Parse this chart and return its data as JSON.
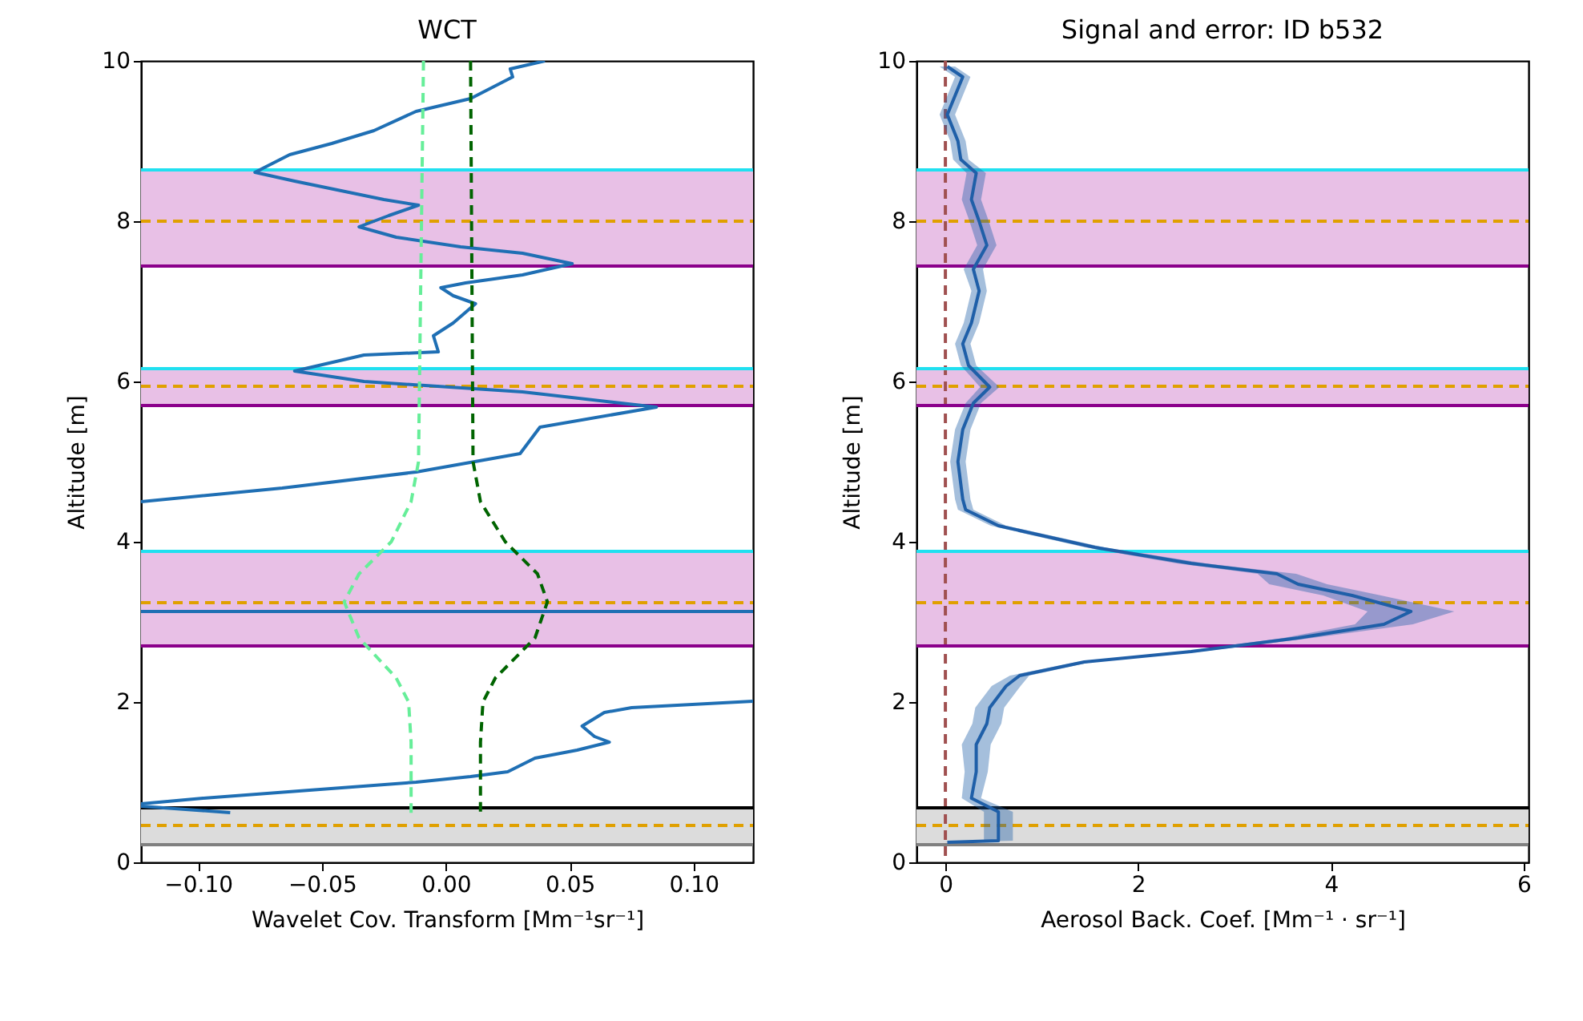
{
  "chart_data": [
    {
      "type": "line",
      "title": "WCT",
      "xlabel": "Wavelet Cov. Transform [Mm⁻¹sr⁻¹]",
      "ylabel": "Altitude [m]",
      "xlim": [
        -0.123,
        0.124
      ],
      "xticks": [
        {
          "value": -0.1,
          "label": "−0.10"
        },
        {
          "value": -0.05,
          "label": "−0.05"
        },
        {
          "value": 0,
          "label": "0.00"
        },
        {
          "value": 0.05,
          "label": "0.05"
        },
        {
          "value": 0.1,
          "label": "0.10"
        }
      ],
      "ylim": [
        0,
        10
      ],
      "yticks": [
        0,
        2,
        4,
        6,
        8,
        10
      ],
      "grid": false,
      "legend": false,
      "marker": "none",
      "series": [
        {
          "color": "#1f6fb4",
          "line_style": "solid",
          "x": [
            0.04,
            0.026,
            0.027,
            0.01,
            -0.012,
            -0.029,
            -0.046,
            -0.063,
            -0.077,
            -0.061,
            -0.025,
            -0.011,
            -0.023,
            -0.035,
            -0.02,
            0.006,
            0.031,
            0.051,
            0.031,
            0.008,
            -0.002,
            0.003,
            0.012,
            0.003,
            -0.005,
            -0.003,
            -0.033,
            -0.061,
            -0.033,
            0.031,
            0.085,
            0.038,
            0.03,
            -0.012,
            -0.066,
            -0.123,
            null,
            -0.123,
            0.124,
            null,
            0.124,
            0.075,
            0.064,
            0.055,
            0.06,
            0.066,
            0.053,
            0.036,
            0.025,
            0.01,
            -0.012,
            -0.055,
            -0.098,
            -0.123,
            null,
            -0.123,
            -0.087
          ],
          "values": [
            10.0,
            9.9,
            9.8,
            9.53,
            9.37,
            9.13,
            8.97,
            8.83,
            8.61,
            8.5,
            8.27,
            8.2,
            8.07,
            7.93,
            7.8,
            7.68,
            7.6,
            7.47,
            7.33,
            7.23,
            7.17,
            7.07,
            6.97,
            6.73,
            6.57,
            6.37,
            6.33,
            6.13,
            6.0,
            5.87,
            5.68,
            5.43,
            5.1,
            4.87,
            4.67,
            4.5,
            null,
            3.13,
            3.13,
            null,
            2.01,
            1.93,
            1.87,
            1.7,
            1.57,
            1.5,
            1.4,
            1.3,
            1.13,
            1.07,
            1.0,
            0.9,
            0.8,
            0.73,
            null,
            0.7,
            0.62
          ]
        },
        {
          "color": "#66ee99",
          "line_style": "dashed",
          "x": [
            -0.009,
            -0.011,
            -0.014,
            -0.022,
            -0.035,
            -0.041,
            -0.035,
            -0.02,
            -0.015,
            -0.014,
            -0.014
          ],
          "values": [
            10,
            5.0,
            4.5,
            4.0,
            3.6,
            3.25,
            2.8,
            2.3,
            2.0,
            1.5,
            0.6
          ]
        },
        {
          "color": "#006400",
          "line_style": "dashed",
          "x": [
            0.01,
            0.011,
            0.014,
            0.024,
            0.037,
            0.041,
            0.036,
            0.02,
            0.015,
            0.014,
            0.014
          ],
          "values": [
            10,
            5.0,
            4.5,
            4.0,
            3.6,
            3.25,
            2.8,
            2.3,
            2.0,
            1.5,
            0.6
          ]
        }
      ],
      "bands": [
        {
          "axis": "y",
          "from": 7.44,
          "to": 8.64,
          "color": "#e8c0e6"
        },
        {
          "axis": "y",
          "from": 5.7,
          "to": 6.16,
          "color": "#e8c0e6"
        },
        {
          "axis": "y",
          "from": 2.7,
          "to": 3.88,
          "color": "#e8c0e6"
        },
        {
          "axis": "y",
          "from": 0.22,
          "to": 0.68,
          "color": "#dcdcdc"
        }
      ],
      "ref_lines": [
        {
          "axis": "y",
          "value": 8.64,
          "color": "#20e0f0",
          "line_style": "solid"
        },
        {
          "axis": "y",
          "value": 8.0,
          "color": "#e0a000",
          "line_style": "dashed"
        },
        {
          "axis": "y",
          "value": 7.44,
          "color": "#8b008b",
          "line_style": "solid"
        },
        {
          "axis": "y",
          "value": 6.16,
          "color": "#20e0f0",
          "line_style": "solid"
        },
        {
          "axis": "y",
          "value": 5.94,
          "color": "#e0a000",
          "line_style": "dashed"
        },
        {
          "axis": "y",
          "value": 5.7,
          "color": "#8b008b",
          "line_style": "solid"
        },
        {
          "axis": "y",
          "value": 3.88,
          "color": "#20e0f0",
          "line_style": "solid"
        },
        {
          "axis": "y",
          "value": 3.24,
          "color": "#e0a000",
          "line_style": "dashed"
        },
        {
          "axis": "y",
          "value": 2.7,
          "color": "#8b008b",
          "line_style": "solid"
        },
        {
          "axis": "y",
          "value": 0.68,
          "color": "#000000",
          "line_style": "solid"
        },
        {
          "axis": "y",
          "value": 0.46,
          "color": "#e0a000",
          "line_style": "dashed"
        },
        {
          "axis": "y",
          "value": 0.22,
          "color": "#808080",
          "line_style": "solid"
        }
      ]
    },
    {
      "type": "line",
      "title": "Signal and error: ID b532",
      "xlabel": "Aerosol Back. Coef. [Mm⁻¹ · sr⁻¹]",
      "ylabel": "Altitude [m]",
      "orientation": "horizontal",
      "xlim": [
        -0.3,
        6.05
      ],
      "xticks": [
        0,
        2,
        4,
        6
      ],
      "ylim": [
        0,
        10
      ],
      "yticks": [
        0,
        2,
        4,
        6,
        8,
        10
      ],
      "grid": false,
      "legend": false,
      "marker": "none",
      "series": [
        {
          "color": "#1f5fa8",
          "line_style": "solid",
          "values": [
            0.02,
            0.18,
            0.02,
            0.13,
            0.16,
            0.32,
            0.27,
            0.35,
            0.43,
            0.29,
            0.35,
            0.27,
            0.18,
            0.24,
            0.46,
            0.29,
            0.18,
            0.13,
            0.18,
            0.21,
            0.55,
            1.55,
            2.55,
            3.44,
            3.66,
            4.22,
            4.83,
            4.55,
            3.66,
            2.55,
            1.44,
            0.77,
            0.63,
            0.46,
            0.43,
            0.32,
            0.32,
            0.27,
            0.55,
            0.55,
            0.02
          ],
          "x": [
            9.93,
            9.8,
            9.33,
            9.0,
            8.77,
            8.6,
            8.27,
            8.0,
            7.7,
            7.4,
            7.13,
            6.73,
            6.47,
            6.2,
            5.93,
            5.73,
            5.4,
            5.0,
            4.53,
            4.4,
            4.2,
            3.93,
            3.73,
            3.6,
            3.47,
            3.33,
            3.13,
            2.97,
            2.8,
            2.63,
            2.5,
            2.33,
            2.2,
            1.93,
            1.73,
            1.47,
            1.13,
            0.8,
            0.63,
            0.27,
            0.25
          ],
          "lower": [
            -0.06,
            0.1,
            -0.06,
            0.05,
            0.08,
            0.22,
            0.17,
            0.25,
            0.33,
            0.19,
            0.27,
            0.19,
            0.1,
            0.16,
            0.36,
            0.21,
            0.1,
            0.05,
            0.1,
            0.13,
            0.47,
            1.45,
            2.4,
            3.24,
            3.36,
            3.92,
            4.38,
            4.25,
            3.51,
            2.45,
            1.36,
            0.67,
            0.48,
            0.31,
            0.28,
            0.17,
            0.2,
            0.17,
            0.4,
            0.4,
            -0.03
          ],
          "upper": [
            0.1,
            0.26,
            0.1,
            0.21,
            0.24,
            0.42,
            0.37,
            0.45,
            0.53,
            0.39,
            0.43,
            0.35,
            0.26,
            0.32,
            0.56,
            0.37,
            0.26,
            0.21,
            0.26,
            0.29,
            0.63,
            1.65,
            2.7,
            3.64,
            3.96,
            4.52,
            5.28,
            4.85,
            3.81,
            2.65,
            1.52,
            0.87,
            0.78,
            0.61,
            0.58,
            0.47,
            0.44,
            0.37,
            0.7,
            0.7,
            0.07
          ]
        }
      ],
      "bands": [
        {
          "axis": "y",
          "from": 7.44,
          "to": 8.64,
          "color": "#e8c0e6"
        },
        {
          "axis": "y",
          "from": 5.7,
          "to": 6.16,
          "color": "#e8c0e6"
        },
        {
          "axis": "y",
          "from": 2.7,
          "to": 3.88,
          "color": "#e8c0e6"
        },
        {
          "axis": "y",
          "from": 0.22,
          "to": 0.68,
          "color": "#dcdcdc"
        }
      ],
      "ref_lines": [
        {
          "axis": "x",
          "value": 0,
          "color": "#a05050",
          "line_style": "dashed"
        },
        {
          "axis": "y",
          "value": 8.64,
          "color": "#20e0f0",
          "line_style": "solid"
        },
        {
          "axis": "y",
          "value": 8.0,
          "color": "#e0a000",
          "line_style": "dashed"
        },
        {
          "axis": "y",
          "value": 7.44,
          "color": "#8b008b",
          "line_style": "solid"
        },
        {
          "axis": "y",
          "value": 6.16,
          "color": "#20e0f0",
          "line_style": "solid"
        },
        {
          "axis": "y",
          "value": 5.94,
          "color": "#e0a000",
          "line_style": "dashed"
        },
        {
          "axis": "y",
          "value": 5.7,
          "color": "#8b008b",
          "line_style": "solid"
        },
        {
          "axis": "y",
          "value": 3.88,
          "color": "#20e0f0",
          "line_style": "solid"
        },
        {
          "axis": "y",
          "value": 3.24,
          "color": "#e0a000",
          "line_style": "dashed"
        },
        {
          "axis": "y",
          "value": 2.7,
          "color": "#8b008b",
          "line_style": "solid"
        },
        {
          "axis": "y",
          "value": 0.68,
          "color": "#000000",
          "line_style": "solid"
        },
        {
          "axis": "y",
          "value": 0.46,
          "color": "#e0a000",
          "line_style": "dashed"
        },
        {
          "axis": "y",
          "value": 0.22,
          "color": "#808080",
          "line_style": "solid"
        }
      ]
    }
  ]
}
